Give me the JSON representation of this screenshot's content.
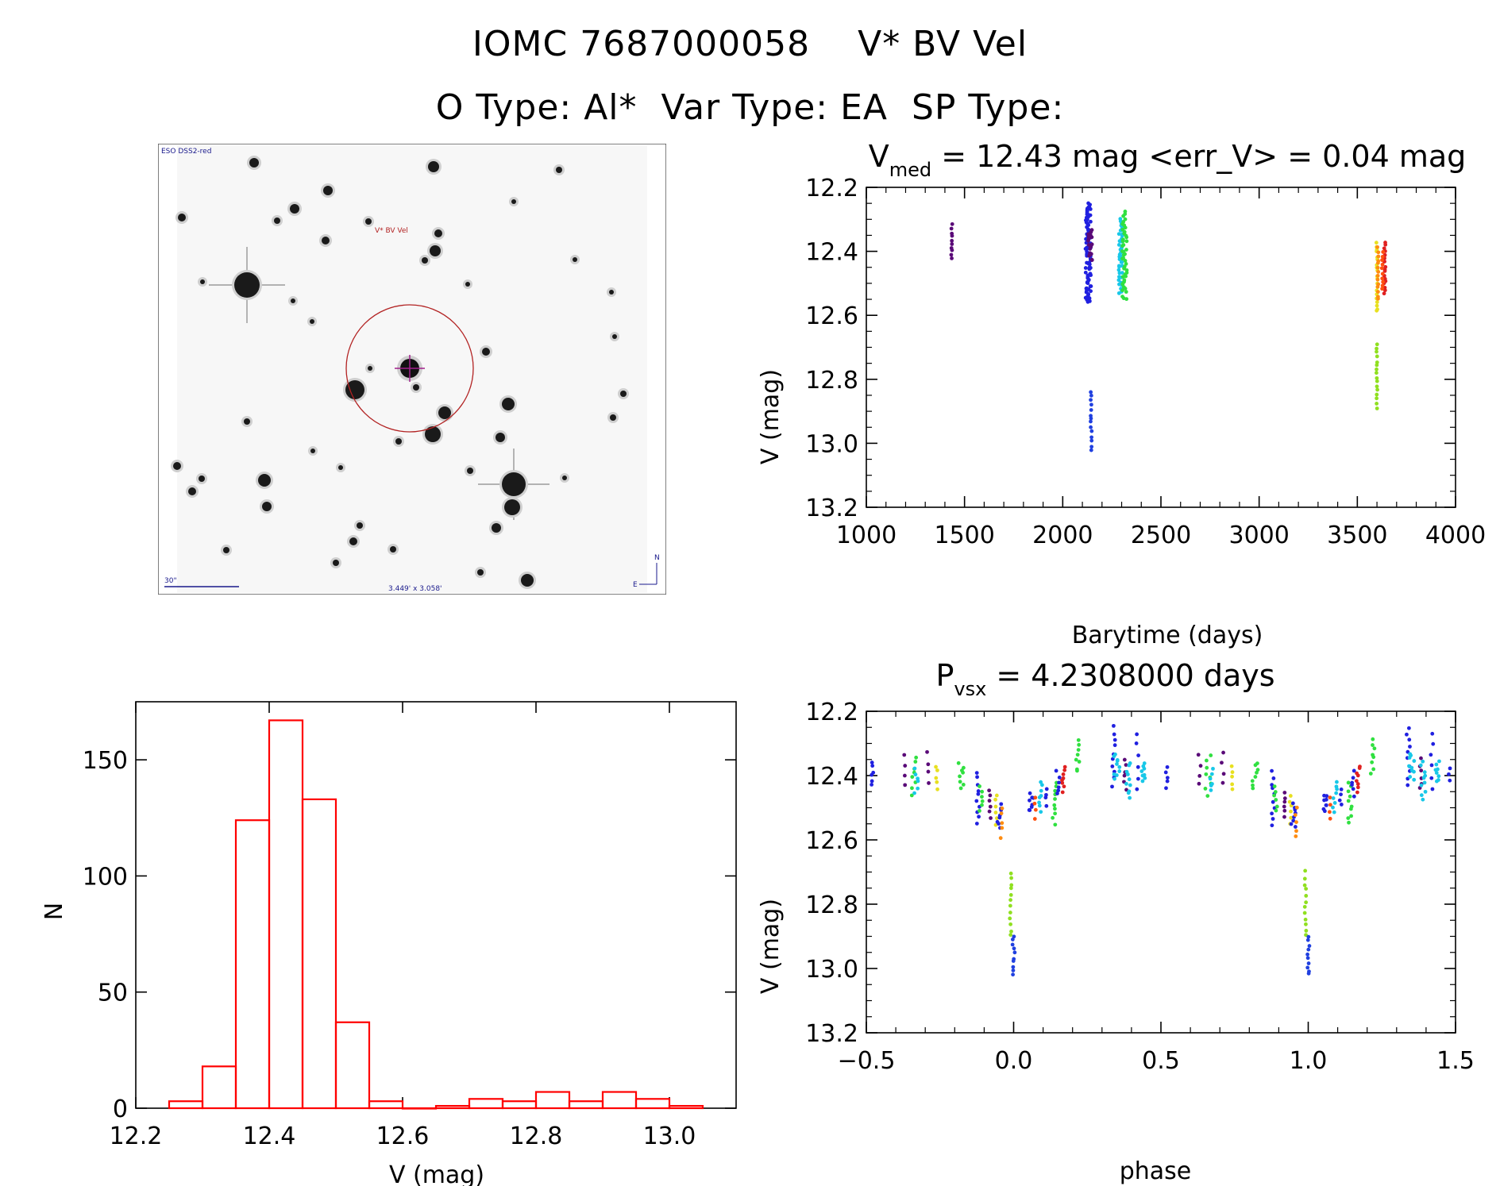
{
  "header": {
    "title_line1": "IOMC 7687000058    V* BV Vel",
    "title_line2": "O Type: Al*  Var Type: EA  SP Type:"
  },
  "finder": {
    "survey_label": "ESO DSS2-red",
    "target_label": "V* BV Vel",
    "scale_label": "30\"",
    "fov_label": "3.449' x 3.058'",
    "north_label": "N",
    "east_label": "E",
    "colors": {
      "target": "#b22222",
      "scale": "#1a1a8c"
    }
  },
  "chart_data": [
    {
      "id": "light-curve",
      "type": "scatter",
      "title_main": "V",
      "title_sub": "med",
      "title_rest": " = 12.43 mag <err_V> = 0.04 mag",
      "xlabel": "Barytime (days)",
      "ylabel": "V (mag)",
      "xlim": [
        1000,
        4000
      ],
      "ylim": [
        13.2,
        12.2
      ],
      "xticks": [
        1000,
        1500,
        2000,
        2500,
        3000,
        3500,
        4000
      ],
      "yticks": [
        12.2,
        12.4,
        12.6,
        12.8,
        13.0,
        13.2
      ],
      "xtick_labels": [
        "1000",
        "1500",
        "2000",
        "2500",
        "3000",
        "3500",
        "4000"
      ],
      "ytick_labels": [
        "12.2",
        "12.4",
        "12.6",
        "12.8",
        "13.0",
        "13.2"
      ],
      "groups": [
        {
          "x": 1435,
          "v_min": 12.32,
          "v_max": 12.42,
          "n": 10,
          "color": "#5a0a78",
          "dx": 3
        },
        {
          "x": 2130,
          "v_min": 12.25,
          "v_max": 12.56,
          "n": 90,
          "color": "#2020e0",
          "dx": 14
        },
        {
          "x": 2140,
          "v_min": 12.33,
          "v_max": 12.43,
          "n": 18,
          "color": "#5a0a78",
          "dx": 10
        },
        {
          "x": 2145,
          "v_min": 12.84,
          "v_max": 13.02,
          "n": 14,
          "color": "#2040e0",
          "dx": 3
        },
        {
          "x": 2295,
          "v_min": 12.3,
          "v_max": 12.53,
          "n": 40,
          "color": "#18c8e8",
          "dx": 10
        },
        {
          "x": 2315,
          "v_min": 12.28,
          "v_max": 12.55,
          "n": 45,
          "color": "#30e040",
          "dx": 12
        },
        {
          "x": 3600,
          "v_min": 12.37,
          "v_max": 12.59,
          "n": 20,
          "color": "#e8e020",
          "dx": 3
        },
        {
          "x": 3605,
          "v_min": 12.39,
          "v_max": 12.55,
          "n": 14,
          "color": "#ff8c10",
          "dx": 3
        },
        {
          "x": 3600,
          "v_min": 12.69,
          "v_max": 12.89,
          "n": 16,
          "color": "#90e020",
          "dx": 3
        },
        {
          "x": 3640,
          "v_min": 12.37,
          "v_max": 12.53,
          "n": 18,
          "color": "#e02020",
          "dx": 4
        },
        {
          "x": 3628,
          "v_min": 12.4,
          "v_max": 12.52,
          "n": 10,
          "color": "#ff5010",
          "dx": 3
        }
      ]
    },
    {
      "id": "phase-curve",
      "type": "scatter",
      "title_main": "P",
      "title_sub": "vsx",
      "title_rest": " = 4.2308000 days",
      "xlabel": "phase",
      "ylabel": "V (mag)",
      "xlim": [
        -0.5,
        1.5
      ],
      "ylim": [
        13.2,
        12.2
      ],
      "xticks": [
        -0.5,
        0.0,
        0.5,
        1.0,
        1.5
      ],
      "yticks": [
        12.2,
        12.4,
        12.6,
        12.8,
        13.0,
        13.2
      ],
      "xtick_labels": [
        "−0.5",
        "0.0",
        "0.5",
        "1.0",
        "1.5"
      ],
      "ytick_labels": [
        "12.2",
        "12.4",
        "12.6",
        "12.8",
        "13.0",
        "13.2"
      ],
      "period_days": 4.2308,
      "groups": [
        {
          "x": -0.48,
          "v_min": 12.36,
          "v_max": 12.43,
          "n": 6,
          "color": "#2020e0",
          "dx": 0.005
        },
        {
          "x": -0.37,
          "v_min": 12.34,
          "v_max": 12.43,
          "n": 4,
          "color": "#5a0a78",
          "dx": 0.005
        },
        {
          "x": -0.34,
          "v_min": 12.34,
          "v_max": 12.46,
          "n": 8,
          "color": "#30e040",
          "dx": 0.01
        },
        {
          "x": -0.33,
          "v_min": 12.38,
          "v_max": 12.45,
          "n": 6,
          "color": "#18c8e8",
          "dx": 0.008
        },
        {
          "x": -0.29,
          "v_min": 12.33,
          "v_max": 12.42,
          "n": 4,
          "color": "#5a0a78",
          "dx": 0.004
        },
        {
          "x": -0.26,
          "v_min": 12.37,
          "v_max": 12.44,
          "n": 5,
          "color": "#e8e020",
          "dx": 0.004
        },
        {
          "x": -0.18,
          "v_min": 12.36,
          "v_max": 12.44,
          "n": 8,
          "color": "#30e040",
          "dx": 0.01
        },
        {
          "x": -0.12,
          "v_min": 12.39,
          "v_max": 12.55,
          "n": 10,
          "color": "#2020e0",
          "dx": 0.006
        },
        {
          "x": -0.11,
          "v_min": 12.43,
          "v_max": 12.51,
          "n": 6,
          "color": "#30e040",
          "dx": 0.006
        },
        {
          "x": -0.08,
          "v_min": 12.45,
          "v_max": 12.53,
          "n": 6,
          "color": "#5a0a78",
          "dx": 0.004
        },
        {
          "x": -0.06,
          "v_min": 12.46,
          "v_max": 12.55,
          "n": 6,
          "color": "#e8e020",
          "dx": 0.004
        },
        {
          "x": -0.05,
          "v_min": 12.49,
          "v_max": 12.56,
          "n": 8,
          "color": "#2020e0",
          "dx": 0.008
        },
        {
          "x": -0.04,
          "v_min": 12.5,
          "v_max": 12.59,
          "n": 5,
          "color": "#ff8c10",
          "dx": 0.004
        },
        {
          "x": -0.01,
          "v_min": 12.7,
          "v_max": 12.9,
          "n": 12,
          "color": "#90e020",
          "dx": 0.003
        },
        {
          "x": 0.0,
          "v_min": 12.9,
          "v_max": 13.02,
          "n": 10,
          "color": "#2040e0",
          "dx": 0.004
        },
        {
          "x": 0.06,
          "v_min": 12.46,
          "v_max": 12.51,
          "n": 8,
          "color": "#2020e0",
          "dx": 0.008
        },
        {
          "x": 0.075,
          "v_min": 12.47,
          "v_max": 12.53,
          "n": 4,
          "color": "#ff5010",
          "dx": 0.004
        },
        {
          "x": 0.09,
          "v_min": 12.42,
          "v_max": 12.51,
          "n": 8,
          "color": "#18c8e8",
          "dx": 0.008
        },
        {
          "x": 0.11,
          "v_min": 12.44,
          "v_max": 12.49,
          "n": 4,
          "color": "#2020e0",
          "dx": 0.004
        },
        {
          "x": 0.14,
          "v_min": 12.42,
          "v_max": 12.55,
          "n": 10,
          "color": "#30e040",
          "dx": 0.008
        },
        {
          "x": 0.17,
          "v_min": 12.37,
          "v_max": 12.45,
          "n": 8,
          "color": "#e02020",
          "dx": 0.006
        },
        {
          "x": 0.15,
          "v_min": 12.39,
          "v_max": 12.46,
          "n": 6,
          "color": "#2020e0",
          "dx": 0.006
        },
        {
          "x": 0.22,
          "v_min": 12.29,
          "v_max": 12.39,
          "n": 8,
          "color": "#30e040",
          "dx": 0.008
        },
        {
          "x": 0.34,
          "v_min": 12.25,
          "v_max": 12.43,
          "n": 10,
          "color": "#2020e0",
          "dx": 0.006
        },
        {
          "x": 0.35,
          "v_min": 12.33,
          "v_max": 12.41,
          "n": 10,
          "color": "#18c8e8",
          "dx": 0.01
        },
        {
          "x": 0.38,
          "v_min": 12.35,
          "v_max": 12.44,
          "n": 6,
          "color": "#5a0a78",
          "dx": 0.006
        },
        {
          "x": 0.39,
          "v_min": 12.36,
          "v_max": 12.47,
          "n": 10,
          "color": "#18c8e8",
          "dx": 0.008
        },
        {
          "x": 0.42,
          "v_min": 12.27,
          "v_max": 12.44,
          "n": 6,
          "color": "#2020e0",
          "dx": 0.004
        },
        {
          "x": 0.44,
          "v_min": 12.36,
          "v_max": 12.42,
          "n": 8,
          "color": "#18c8e8",
          "dx": 0.008
        },
        {
          "x": 0.52,
          "v_min": 12.37,
          "v_max": 12.44,
          "n": 5,
          "color": "#2020e0",
          "dx": 0.004
        },
        {
          "x": 0.63,
          "v_min": 12.34,
          "v_max": 12.43,
          "n": 4,
          "color": "#5a0a78",
          "dx": 0.005
        },
        {
          "x": 0.66,
          "v_min": 12.34,
          "v_max": 12.46,
          "n": 8,
          "color": "#30e040",
          "dx": 0.01
        },
        {
          "x": 0.67,
          "v_min": 12.38,
          "v_max": 12.45,
          "n": 6,
          "color": "#18c8e8",
          "dx": 0.008
        },
        {
          "x": 0.71,
          "v_min": 12.33,
          "v_max": 12.42,
          "n": 4,
          "color": "#5a0a78",
          "dx": 0.004
        },
        {
          "x": 0.74,
          "v_min": 12.37,
          "v_max": 12.44,
          "n": 5,
          "color": "#e8e020",
          "dx": 0.004
        },
        {
          "x": 0.82,
          "v_min": 12.36,
          "v_max": 12.44,
          "n": 8,
          "color": "#30e040",
          "dx": 0.01
        },
        {
          "x": 0.88,
          "v_min": 12.39,
          "v_max": 12.55,
          "n": 10,
          "color": "#2020e0",
          "dx": 0.006
        },
        {
          "x": 0.89,
          "v_min": 12.43,
          "v_max": 12.51,
          "n": 6,
          "color": "#30e040",
          "dx": 0.006
        },
        {
          "x": 0.92,
          "v_min": 12.45,
          "v_max": 12.53,
          "n": 6,
          "color": "#5a0a78",
          "dx": 0.004
        },
        {
          "x": 0.94,
          "v_min": 12.46,
          "v_max": 12.55,
          "n": 6,
          "color": "#e8e020",
          "dx": 0.004
        },
        {
          "x": 0.95,
          "v_min": 12.49,
          "v_max": 12.56,
          "n": 8,
          "color": "#2020e0",
          "dx": 0.008
        },
        {
          "x": 0.96,
          "v_min": 12.5,
          "v_max": 12.59,
          "n": 5,
          "color": "#ff8c10",
          "dx": 0.004
        },
        {
          "x": 0.99,
          "v_min": 12.7,
          "v_max": 12.9,
          "n": 12,
          "color": "#90e020",
          "dx": 0.003
        },
        {
          "x": 1.0,
          "v_min": 12.9,
          "v_max": 13.02,
          "n": 10,
          "color": "#2040e0",
          "dx": 0.004
        },
        {
          "x": 1.06,
          "v_min": 12.46,
          "v_max": 12.51,
          "n": 8,
          "color": "#2020e0",
          "dx": 0.008
        },
        {
          "x": 1.075,
          "v_min": 12.47,
          "v_max": 12.53,
          "n": 4,
          "color": "#ff5010",
          "dx": 0.004
        },
        {
          "x": 1.09,
          "v_min": 12.42,
          "v_max": 12.51,
          "n": 8,
          "color": "#18c8e8",
          "dx": 0.008
        },
        {
          "x": 1.11,
          "v_min": 12.44,
          "v_max": 12.49,
          "n": 4,
          "color": "#2020e0",
          "dx": 0.004
        },
        {
          "x": 1.14,
          "v_min": 12.42,
          "v_max": 12.55,
          "n": 10,
          "color": "#30e040",
          "dx": 0.008
        },
        {
          "x": 1.17,
          "v_min": 12.37,
          "v_max": 12.45,
          "n": 8,
          "color": "#e02020",
          "dx": 0.006
        },
        {
          "x": 1.15,
          "v_min": 12.39,
          "v_max": 12.46,
          "n": 6,
          "color": "#2020e0",
          "dx": 0.006
        },
        {
          "x": 1.22,
          "v_min": 12.29,
          "v_max": 12.39,
          "n": 8,
          "color": "#30e040",
          "dx": 0.008
        },
        {
          "x": 1.34,
          "v_min": 12.25,
          "v_max": 12.43,
          "n": 10,
          "color": "#2020e0",
          "dx": 0.006
        },
        {
          "x": 1.35,
          "v_min": 12.33,
          "v_max": 12.41,
          "n": 10,
          "color": "#18c8e8",
          "dx": 0.01
        },
        {
          "x": 1.38,
          "v_min": 12.35,
          "v_max": 12.44,
          "n": 6,
          "color": "#5a0a78",
          "dx": 0.006
        },
        {
          "x": 1.39,
          "v_min": 12.36,
          "v_max": 12.47,
          "n": 10,
          "color": "#18c8e8",
          "dx": 0.008
        },
        {
          "x": 1.42,
          "v_min": 12.27,
          "v_max": 12.44,
          "n": 6,
          "color": "#2020e0",
          "dx": 0.004
        },
        {
          "x": 1.44,
          "v_min": 12.36,
          "v_max": 12.42,
          "n": 8,
          "color": "#18c8e8",
          "dx": 0.008
        },
        {
          "x": 1.48,
          "v_min": 12.38,
          "v_max": 12.42,
          "n": 3,
          "color": "#2020e0",
          "dx": 0.004
        }
      ]
    },
    {
      "id": "histogram",
      "type": "bar",
      "xlabel": "V (mag)",
      "ylabel": "N",
      "xlim": [
        12.2,
        13.1
      ],
      "ylim": [
        0,
        175
      ],
      "xticks": [
        12.2,
        12.4,
        12.6,
        12.8,
        13.0
      ],
      "yticks": [
        0,
        50,
        100,
        150
      ],
      "xtick_labels": [
        "12.2",
        "12.4",
        "12.6",
        "12.8",
        "13.0"
      ],
      "ytick_labels": [
        "0",
        "50",
        "100",
        "150"
      ],
      "bin_edges": [
        12.25,
        12.3,
        12.35,
        12.4,
        12.45,
        12.5,
        12.55,
        12.6,
        12.65,
        12.7,
        12.75,
        12.8,
        12.85,
        12.9,
        12.95,
        13.0,
        13.05
      ],
      "values": [
        3,
        18,
        124,
        167,
        133,
        37,
        3,
        0,
        1,
        4,
        3,
        7,
        3,
        7,
        4,
        1
      ],
      "bar_color": "#ff0000"
    }
  ]
}
